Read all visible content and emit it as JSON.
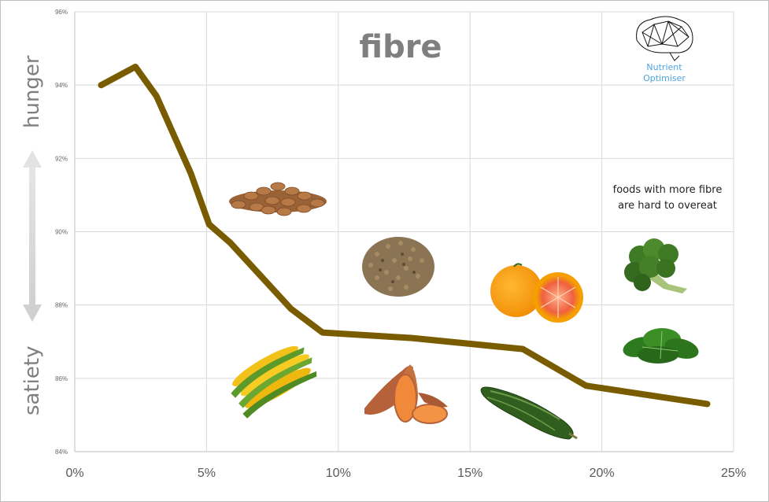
{
  "chart_data": {
    "type": "line",
    "title": "fibre",
    "xlabel": "",
    "ylabel": "",
    "xlim": [
      0,
      25
    ],
    "ylim": [
      84,
      96
    ],
    "x_ticks": [
      "0%",
      "5%",
      "10%",
      "15%",
      "20%",
      "25%"
    ],
    "y_ticks": [
      "84%",
      "86%",
      "88%",
      "90%",
      "92%",
      "94%",
      "96%"
    ],
    "grid": true,
    "series": [
      {
        "x": [
          1.0,
          2.3,
          3.1,
          4.4,
          5.1,
          5.9,
          8.2,
          9.4,
          12.8,
          17.0,
          19.4,
          24.0
        ],
        "y": [
          94.0,
          94.5,
          93.7,
          91.6,
          90.2,
          89.7,
          87.9,
          87.25,
          87.1,
          86.8,
          85.8,
          85.3
        ],
        "color": "#7a5c00"
      }
    ],
    "y_axis_labels": {
      "top": "hunger",
      "bottom": "satiety"
    },
    "annotations": [
      "foods with more fibre",
      "are hard to overeat"
    ],
    "food_icons": [
      "almonds-icon",
      "lentils-icon",
      "orange-icon",
      "broccoli-icon",
      "corn-icon",
      "sweet-potato-icon",
      "zucchini-icon",
      "spinach-icon"
    ]
  },
  "logo": {
    "line1": "Nutrient",
    "line2": "Optimiser",
    "color": "#4aa3df"
  }
}
